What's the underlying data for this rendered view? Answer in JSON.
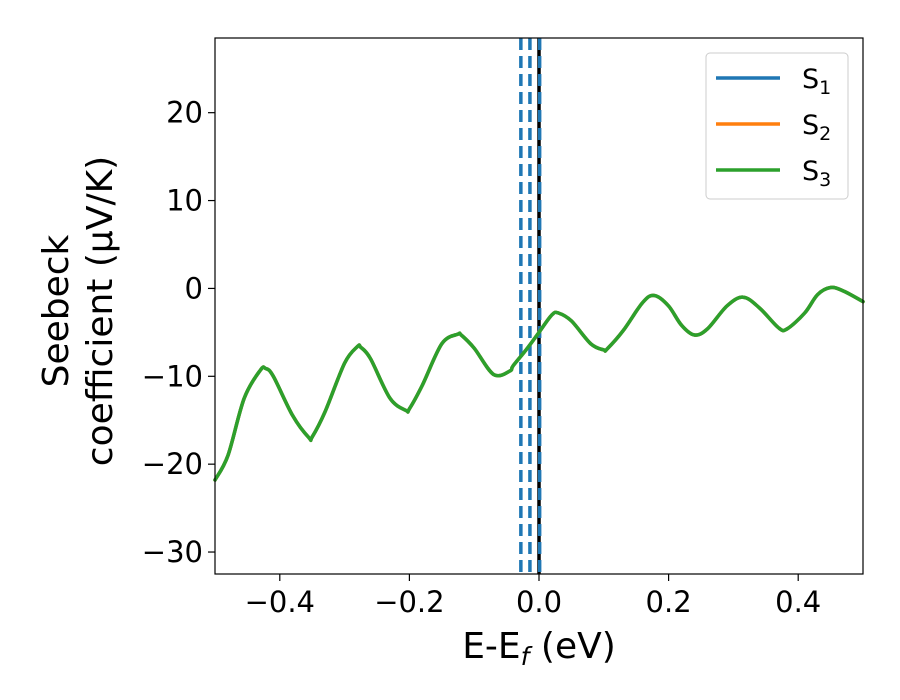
{
  "chart_data": {
    "type": "line",
    "xlabel": "E-E",
    "xlabel_sub": "f",
    "xlabel_unit": " (eV)",
    "ylabel_line1": "Seebeck",
    "ylabel_line2": "coefficient  (μV/K)",
    "xlim": [
      -0.5,
      0.5
    ],
    "ylim": [
      -32.5,
      28.5
    ],
    "grid": false,
    "legend_position": "top-right",
    "x_ticks": [
      -0.4,
      -0.2,
      0.0,
      0.2,
      0.4
    ],
    "x_tick_labels": [
      "−0.4",
      "−0.2",
      "0.0",
      "0.2",
      "0.4"
    ],
    "y_ticks": [
      -30,
      -20,
      -10,
      0,
      10,
      20
    ],
    "y_tick_labels": [
      "−30",
      "−20",
      "−10",
      "0",
      "10",
      "20"
    ],
    "vertical_lines": [
      {
        "x": -0.028,
        "color": "#1f77b4",
        "style": "dashed"
      },
      {
        "x": -0.014,
        "color": "#1f77b4",
        "style": "dashed"
      },
      {
        "x": 0.0,
        "color": "#000000",
        "style": "solid"
      },
      {
        "x": 0.001,
        "color": "#1f77b4",
        "style": "dashed"
      }
    ],
    "series": [
      {
        "name": "S",
        "sub": "1",
        "color": "#1f77b4",
        "x": [
          -0.5,
          -0.48,
          -0.455,
          -0.43,
          -0.422,
          -0.41,
          -0.38,
          -0.355,
          -0.35,
          -0.33,
          -0.3,
          -0.28,
          -0.275,
          -0.26,
          -0.23,
          -0.205,
          -0.2,
          -0.18,
          -0.15,
          -0.125,
          -0.12,
          -0.1,
          -0.07,
          -0.045,
          -0.04,
          -0.02,
          0.0,
          0.02,
          0.03,
          0.05,
          0.08,
          0.1,
          0.105,
          0.13,
          0.16,
          0.178,
          0.2,
          0.22,
          0.24,
          0.26,
          0.29,
          0.315,
          0.34,
          0.37,
          0.383,
          0.41,
          0.43,
          0.45,
          0.47,
          0.5
        ],
        "y": [
          -21.8,
          -19.0,
          -12.5,
          -9.3,
          -9.1,
          -10.0,
          -14.5,
          -17.0,
          -16.9,
          -14.0,
          -8.5,
          -6.6,
          -6.7,
          -8.0,
          -12.5,
          -13.9,
          -13.7,
          -11.0,
          -6.3,
          -5.2,
          -5.3,
          -6.8,
          -9.8,
          -9.4,
          -8.8,
          -7.0,
          -5.0,
          -3.0,
          -2.8,
          -3.7,
          -6.3,
          -7.0,
          -6.9,
          -4.8,
          -1.6,
          -0.8,
          -2.0,
          -4.2,
          -5.3,
          -4.6,
          -2.0,
          -1.0,
          -2.2,
          -4.5,
          -4.6,
          -2.8,
          -0.7,
          0.1,
          -0.3,
          -1.5
        ]
      },
      {
        "name": "S",
        "sub": "2",
        "color": "#ff7f0e",
        "x": [
          -0.5,
          -0.48,
          -0.455,
          -0.43,
          -0.422,
          -0.41,
          -0.38,
          -0.355,
          -0.35,
          -0.33,
          -0.3,
          -0.28,
          -0.275,
          -0.26,
          -0.23,
          -0.205,
          -0.2,
          -0.18,
          -0.15,
          -0.125,
          -0.12,
          -0.1,
          -0.07,
          -0.045,
          -0.04,
          -0.02,
          0.0,
          0.02,
          0.03,
          0.05,
          0.08,
          0.1,
          0.105,
          0.13,
          0.16,
          0.178,
          0.2,
          0.22,
          0.24,
          0.26,
          0.29,
          0.315,
          0.34,
          0.37,
          0.383,
          0.41,
          0.43,
          0.45,
          0.47,
          0.5
        ],
        "y": [
          -21.8,
          -19.0,
          -12.5,
          -9.3,
          -9.1,
          -10.0,
          -14.5,
          -17.0,
          -16.9,
          -14.0,
          -8.5,
          -6.6,
          -6.7,
          -8.0,
          -12.5,
          -13.9,
          -13.7,
          -11.0,
          -6.3,
          -5.2,
          -5.3,
          -6.8,
          -9.8,
          -9.4,
          -8.8,
          -7.0,
          -5.0,
          -3.0,
          -2.8,
          -3.7,
          -6.3,
          -7.0,
          -6.9,
          -4.8,
          -1.6,
          -0.8,
          -2.0,
          -4.2,
          -5.3,
          -4.6,
          -2.0,
          -1.0,
          -2.2,
          -4.5,
          -4.6,
          -2.8,
          -0.7,
          0.1,
          -0.3,
          -1.5
        ]
      },
      {
        "name": "S",
        "sub": "3",
        "color": "#2ca02c",
        "x": [
          -0.5,
          -0.48,
          -0.455,
          -0.43,
          -0.422,
          -0.41,
          -0.38,
          -0.355,
          -0.35,
          -0.33,
          -0.3,
          -0.28,
          -0.275,
          -0.26,
          -0.23,
          -0.205,
          -0.2,
          -0.18,
          -0.15,
          -0.125,
          -0.12,
          -0.1,
          -0.07,
          -0.045,
          -0.04,
          -0.02,
          0.0,
          0.02,
          0.03,
          0.05,
          0.08,
          0.1,
          0.105,
          0.13,
          0.16,
          0.178,
          0.2,
          0.22,
          0.24,
          0.26,
          0.29,
          0.315,
          0.34,
          0.37,
          0.383,
          0.41,
          0.43,
          0.45,
          0.47,
          0.5
        ],
        "y": [
          -21.8,
          -19.0,
          -12.5,
          -9.3,
          -9.1,
          -10.0,
          -14.5,
          -17.0,
          -16.9,
          -14.0,
          -8.5,
          -6.6,
          -6.7,
          -8.0,
          -12.5,
          -13.9,
          -13.7,
          -11.0,
          -6.3,
          -5.2,
          -5.3,
          -6.8,
          -9.8,
          -9.4,
          -8.8,
          -7.0,
          -5.0,
          -3.0,
          -2.8,
          -3.7,
          -6.3,
          -7.0,
          -6.9,
          -4.8,
          -1.6,
          -0.8,
          -2.0,
          -4.2,
          -5.3,
          -4.6,
          -2.0,
          -1.0,
          -2.2,
          -4.5,
          -4.6,
          -2.8,
          -0.7,
          0.1,
          -0.3,
          -1.5
        ]
      }
    ]
  }
}
